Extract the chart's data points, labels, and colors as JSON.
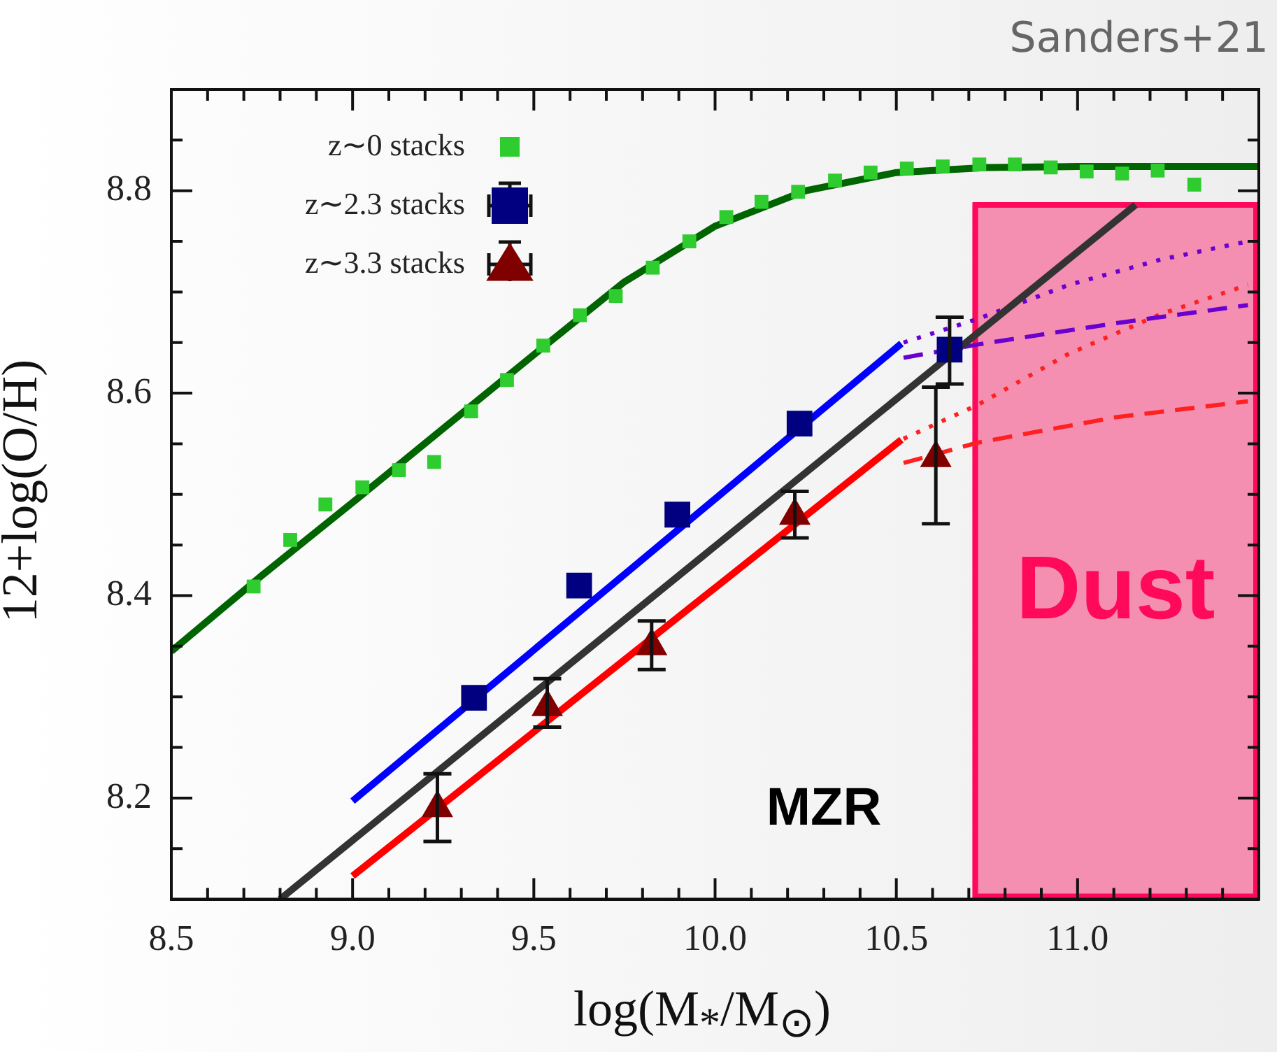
{
  "chart_data": {
    "type": "scatter",
    "xlabel": "log(M$_{*}$/M$_{⊙}$)",
    "ylabel": "12+log(O/H)",
    "annotations": [
      "Sanders+21",
      "MZR"
    ],
    "xlim": [
      8.5,
      11.5
    ],
    "ylim": [
      8.1,
      8.9
    ],
    "xticks": [
      8.5,
      {
        "value": 8.6,
        "label": null
      },
      {
        "value": 8.7,
        "label": null
      },
      {
        "value": 8.8,
        "label": null
      },
      {
        "value": 8.9,
        "label": null
      },
      {
        "value": 9.0,
        "label": "9.0"
      },
      {
        "value": 9.1,
        "label": null
      },
      {
        "value": 9.2,
        "label": null
      },
      {
        "value": 9.3,
        "label": null
      },
      {
        "value": 9.4,
        "label": null
      },
      9.5,
      {
        "value": 9.6,
        "label": null
      },
      {
        "value": 9.7,
        "label": null
      },
      {
        "value": 9.8,
        "label": null
      },
      {
        "value": 9.9,
        "label": null
      },
      {
        "value": 10.0,
        "label": "10.0"
      },
      {
        "value": 10.1,
        "label": null
      },
      {
        "value": 10.2,
        "label": null
      },
      {
        "value": 10.3,
        "label": null
      },
      {
        "value": 10.4,
        "label": null
      },
      10.5,
      {
        "value": 10.6,
        "label": null
      },
      {
        "value": 10.7,
        "label": null
      },
      {
        "value": 10.8,
        "label": null
      },
      {
        "value": 10.9,
        "label": null
      },
      {
        "value": 11.0,
        "label": "11.0"
      },
      {
        "value": 11.1,
        "label": null
      },
      {
        "value": 11.2,
        "label": null
      },
      {
        "value": 11.3,
        "label": null
      },
      {
        "value": 11.4,
        "label": null
      }
    ],
    "yticks": [
      {
        "value": 8.15,
        "label": null
      },
      8.2,
      {
        "value": 8.25,
        "label": null
      },
      {
        "value": 8.3,
        "label": null
      },
      {
        "value": 8.35,
        "label": null
      },
      8.4,
      {
        "value": 8.45,
        "label": null
      },
      {
        "value": 8.5,
        "label": null
      },
      {
        "value": 8.55,
        "label": null
      },
      8.6,
      {
        "value": 8.65,
        "label": null
      },
      {
        "value": 8.7,
        "label": null
      },
      {
        "value": 8.75,
        "label": null
      },
      8.8,
      {
        "value": 8.85,
        "label": null
      }
    ],
    "grid": false,
    "legend": "top left",
    "bands": [
      {
        "axis": "x",
        "from": 10.71,
        "to": 11.5,
        "label": "Dust",
        "color": "#f48fb1"
      }
    ],
    "series": [
      {
        "name": "z∼0 stacks",
        "type": "scatter",
        "marker": "square",
        "color": "#2ecc2e",
        "x": [
          8.727,
          8.828,
          8.925,
          9.027,
          9.128,
          9.225,
          9.327,
          9.426,
          9.526,
          9.627,
          9.726,
          9.828,
          9.929,
          10.031,
          10.128,
          10.229,
          10.331,
          10.429,
          10.529,
          10.628,
          10.729,
          10.827,
          10.926,
          11.025,
          11.123,
          11.221,
          11.322
        ],
        "values": [
          8.409,
          8.455,
          8.49,
          8.507,
          8.524,
          8.532,
          8.582,
          8.613,
          8.647,
          8.677,
          8.696,
          8.724,
          8.75,
          8.774,
          8.789,
          8.799,
          8.81,
          8.818,
          8.822,
          8.824,
          8.826,
          8.826,
          8.823,
          8.819,
          8.817,
          8.82,
          8.806
        ]
      },
      {
        "type": "line",
        "marker": "none",
        "line_style": "solid",
        "color": "#006400",
        "x": [
          8.5,
          8.75,
          9.0,
          9.25,
          9.5,
          9.75,
          10.0,
          10.25,
          10.5,
          10.75,
          11.0,
          11.5
        ],
        "values": [
          8.345,
          8.42,
          8.492,
          8.565,
          8.638,
          8.71,
          8.765,
          8.8,
          8.818,
          8.823,
          8.824,
          8.824
        ]
      },
      {
        "name": "z∼2.3 stacks",
        "type": "scatter",
        "marker": "square",
        "color": "#000080",
        "x": [
          9.335,
          9.625,
          9.896,
          10.233,
          10.647
        ],
        "values": [
          8.299,
          8.41,
          8.48,
          8.57,
          8.643
        ],
        "errors": [
          null,
          null,
          null,
          null,
          [
            8.609,
            8.675
          ]
        ]
      },
      {
        "type": "line",
        "marker": "none",
        "line_style": "solid",
        "color": "#0000ff",
        "x": [
          9.0,
          10.514
        ],
        "values": [
          8.197,
          8.649
        ]
      },
      {
        "name": "z∼3.3 stacks",
        "type": "scatter",
        "marker": "triangle",
        "color": "#800000",
        "x": [
          9.234,
          9.537,
          9.825,
          10.22,
          10.609
        ],
        "values": [
          8.19,
          8.29,
          8.35,
          8.479,
          8.536
        ],
        "errors": [
          [
            8.157,
            8.224
          ],
          [
            8.27,
            8.318
          ],
          [
            8.327,
            8.375
          ],
          [
            8.457,
            8.503
          ],
          [
            8.471,
            8.606
          ]
        ]
      },
      {
        "type": "line",
        "marker": "none",
        "line_style": "solid",
        "color": "#ff0000",
        "x": [
          9.0,
          10.514
        ],
        "values": [
          8.123,
          8.554
        ]
      },
      {
        "type": "line",
        "marker": "none",
        "line_style": "solid",
        "color": "#333333",
        "x": [
          8.8,
          11.16
        ],
        "values": [
          8.1,
          8.786
        ]
      },
      {
        "type": "line",
        "marker": "none",
        "line_style": "dotted",
        "color": "#6a00d0",
        "x": [
          10.52,
          10.722,
          10.976,
          11.23,
          11.47
        ],
        "values": [
          8.65,
          8.673,
          8.707,
          8.732,
          8.75
        ]
      },
      {
        "type": "line",
        "marker": "none",
        "line_style": "dashed",
        "color": "#6a00d0",
        "x": [
          10.52,
          10.723,
          11.103,
          11.47
        ],
        "values": [
          8.635,
          8.648,
          8.669,
          8.687
        ]
      },
      {
        "type": "line",
        "marker": "none",
        "line_style": "dotted",
        "color": "#ff2020",
        "x": [
          10.52,
          10.722,
          10.976,
          11.229,
          11.47
        ],
        "values": [
          8.555,
          8.588,
          8.639,
          8.678,
          8.707
        ]
      },
      {
        "type": "line",
        "marker": "none",
        "line_style": "dashed",
        "color": "#ff2020",
        "x": [
          10.52,
          10.723,
          11.102,
          11.47
        ],
        "values": [
          8.531,
          8.551,
          8.576,
          8.592
        ]
      }
    ]
  }
}
